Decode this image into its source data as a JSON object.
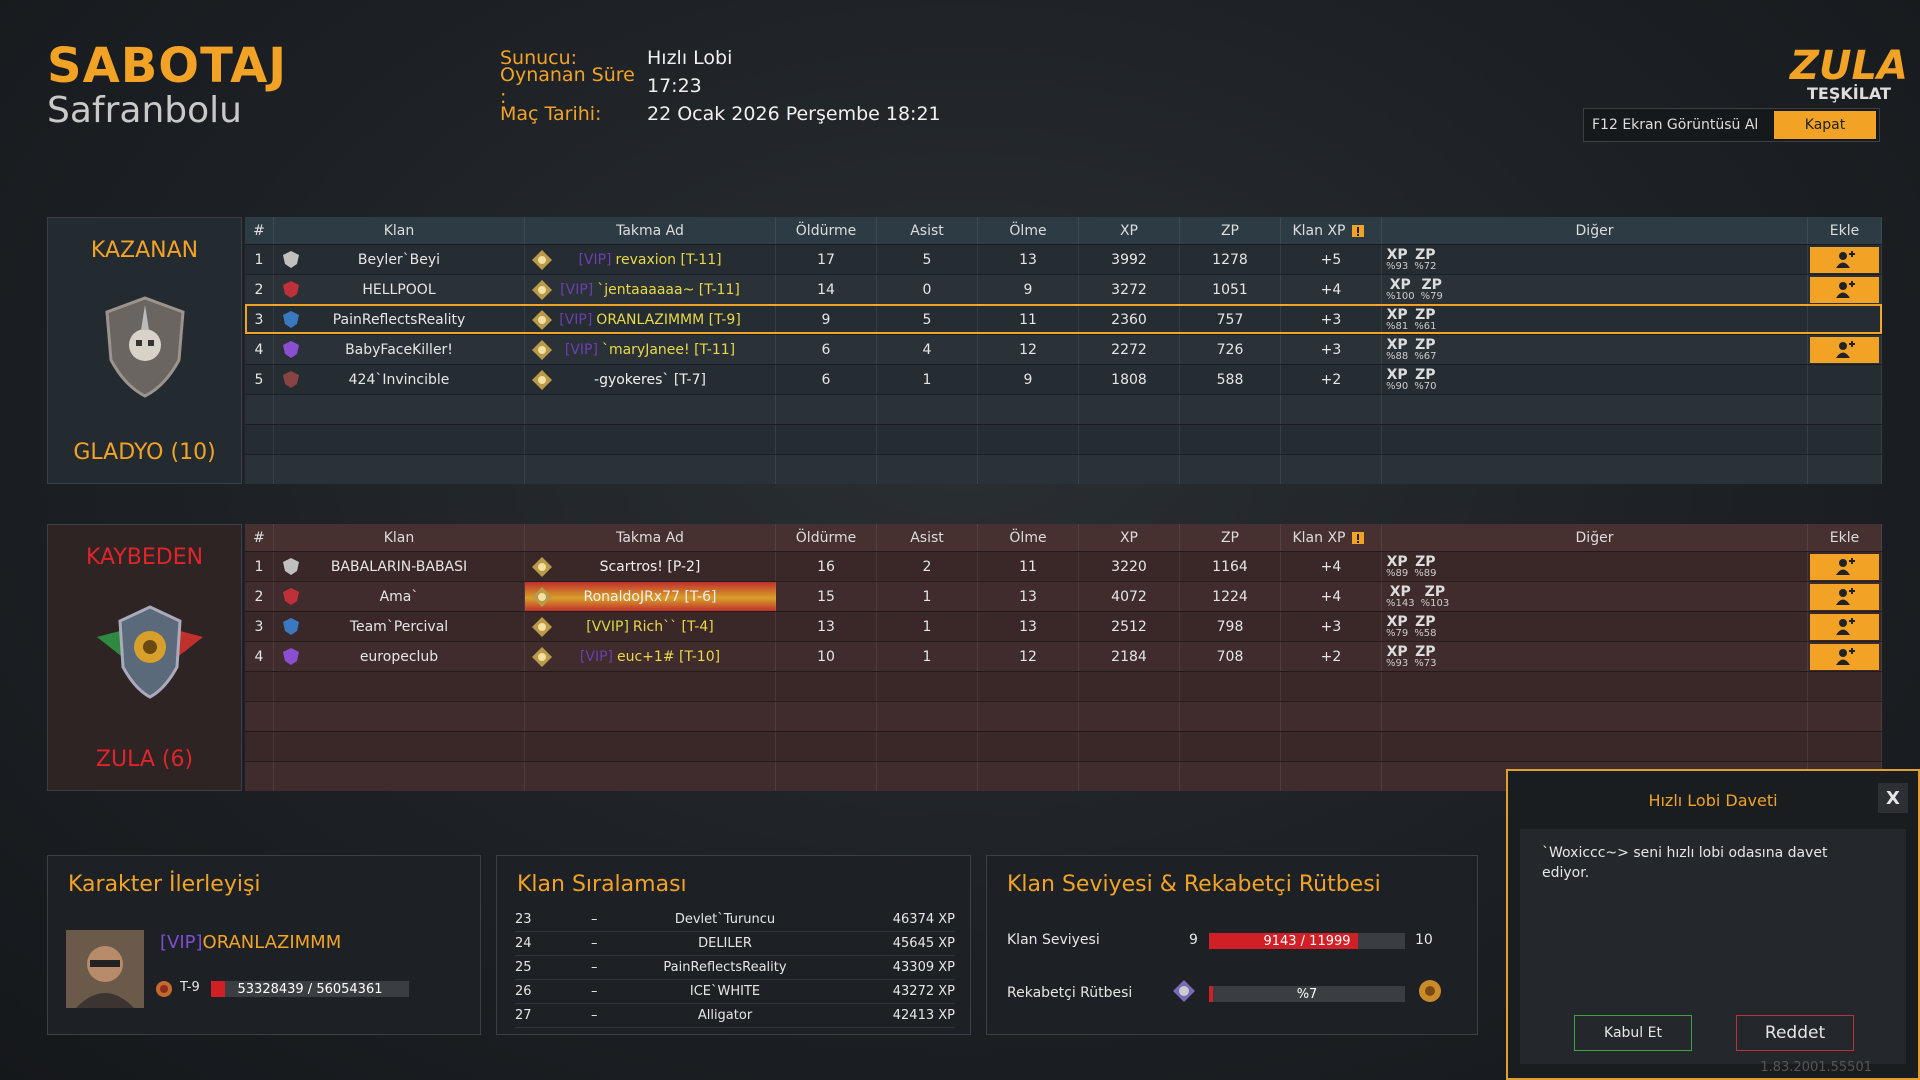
{
  "header": {
    "mode": "SABOTAJ",
    "map": "Safranbolu",
    "info": [
      {
        "label": "Sunucu:",
        "value": "Hızlı Lobi"
      },
      {
        "label": "Oynanan Süre :",
        "value": "17:23"
      },
      {
        "label": "Maç Tarihi:",
        "value": "22 Ocak 2026 Perşembe 18:21"
      }
    ],
    "logo": {
      "line1": "ZULA",
      "line2": "TEŞKİLAT"
    },
    "screenshot_button": "F12 Ekran Görüntüsü Al",
    "close_button": "Kapat"
  },
  "columns": [
    "#",
    "Klan",
    "Takma Ad",
    "Öldürme",
    "Asist",
    "Ölme",
    "XP",
    "ZP",
    "Klan XP",
    "Diğer",
    "Ekle"
  ],
  "teams": [
    {
      "status": "KAZANAN",
      "clan": "GLADYO (10)",
      "players": [
        {
          "rank": 1,
          "clan": "Beyler`Beyi",
          "tag": "[VIP]",
          "nick": "revaxion [T-11]",
          "kills": 17,
          "assists": 5,
          "deaths": 13,
          "xp": 3992,
          "zp": 1278,
          "clan_xp": "+5",
          "bonuses": [
            {
              "type": "XP",
              "value": "%93"
            },
            {
              "type": "ZP",
              "value": "%72"
            }
          ],
          "can_add": true
        },
        {
          "rank": 2,
          "clan": "HELLPOOL",
          "tag": "[VIP]",
          "nick": "`jentaaaaaa~ [T-11]",
          "kills": 14,
          "assists": 0,
          "deaths": 9,
          "xp": 3272,
          "zp": 1051,
          "clan_xp": "+4",
          "bonuses": [
            {
              "type": "XP",
              "value": "%100"
            },
            {
              "type": "ZP",
              "value": "%79"
            }
          ],
          "can_add": true
        },
        {
          "rank": 3,
          "clan": "PainReflectsReality",
          "tag": "[VIP]",
          "nick": "ORANLAZIMMM [T-9]",
          "kills": 9,
          "assists": 5,
          "deaths": 11,
          "xp": 2360,
          "zp": 757,
          "clan_xp": "+3",
          "bonuses": [
            {
              "type": "XP",
              "value": "%81"
            },
            {
              "type": "ZP",
              "value": "%61"
            }
          ],
          "can_add": false,
          "current_player": true
        },
        {
          "rank": 4,
          "clan": "BabyFaceKiller!",
          "tag": "[VIP]",
          "nick": "`maryJanee! [T-11]",
          "kills": 6,
          "assists": 4,
          "deaths": 12,
          "xp": 2272,
          "zp": 726,
          "clan_xp": "+3",
          "bonuses": [
            {
              "type": "XP",
              "value": "%88"
            },
            {
              "type": "ZP",
              "value": "%67"
            }
          ],
          "can_add": true
        },
        {
          "rank": 5,
          "clan": "424`Invincible",
          "nick": "-gyokeres` [T-7]",
          "kills": 6,
          "assists": 1,
          "deaths": 9,
          "xp": 1808,
          "zp": 588,
          "clan_xp": "+2",
          "bonuses": [
            {
              "type": "XP",
              "value": "%90"
            },
            {
              "type": "ZP",
              "value": "%70"
            }
          ],
          "can_add": false
        }
      ]
    },
    {
      "status": "KAYBEDEN",
      "clan": "ZULA (6)",
      "players": [
        {
          "rank": 1,
          "clan": "BABALARIN-BABASI",
          "nick": "Scartros! [P-2]",
          "kills": 16,
          "assists": 2,
          "deaths": 11,
          "xp": 3220,
          "zp": 1164,
          "clan_xp": "+4",
          "bonuses": [
            {
              "type": "XP",
              "value": "%89"
            },
            {
              "type": "ZP",
              "value": "%89"
            }
          ],
          "can_add": true
        },
        {
          "rank": 2,
          "clan": "Ama`",
          "nick": "RonaldoJRx77 [T-6]",
          "kills": 15,
          "assists": 1,
          "deaths": 13,
          "xp": 4072,
          "zp": 1224,
          "clan_xp": "+4",
          "bonuses": [
            {
              "type": "XP",
              "value": "%143"
            },
            {
              "type": "ZP",
              "value": "%103"
            }
          ],
          "can_add": true
        },
        {
          "rank": 3,
          "clan": "Team`Percival",
          "tag": "[VVIP]",
          "nick": "Rich`` [T-4]",
          "kills": 13,
          "assists": 1,
          "deaths": 13,
          "xp": 2512,
          "zp": 798,
          "clan_xp": "+3",
          "bonuses": [
            {
              "type": "XP",
              "value": "%79"
            },
            {
              "type": "ZP",
              "value": "%58"
            }
          ],
          "can_add": true
        },
        {
          "rank": 4,
          "clan": "europeclub",
          "tag": "[VIP]",
          "nick": "euc+1# [T-10]",
          "kills": 10,
          "assists": 1,
          "deaths": 12,
          "xp": 2184,
          "zp": 708,
          "clan_xp": "+2",
          "bonuses": [
            {
              "type": "XP",
              "value": "%93"
            },
            {
              "type": "ZP",
              "value": "%73"
            }
          ],
          "can_add": true
        }
      ]
    }
  ],
  "character": {
    "title": "Karakter İlerleyişi",
    "tag": "[VIP]",
    "name": "ORANLAZIMMM",
    "rank": "T-9",
    "xp": "53328439 / 56054361"
  },
  "clan_ranking": {
    "title": "Klan Sıralaması",
    "rows": [
      {
        "rank": 23,
        "change": "–",
        "name": "Devlet`Turuncu",
        "xp": "46374 XP"
      },
      {
        "rank": 24,
        "change": "–",
        "name": "DELILER",
        "xp": "45645 XP"
      },
      {
        "rank": 25,
        "change": "–",
        "name": "PainReflectsReality",
        "xp": "43309 XP"
      },
      {
        "rank": 26,
        "change": "–",
        "name": "ICE`WHITE",
        "xp": "43272 XP"
      },
      {
        "rank": 27,
        "change": "–",
        "name": "Alligator",
        "xp": "42413 XP"
      }
    ]
  },
  "clan_level": {
    "title": "Klan Seviyesi & Rekabetçi Rütbesi",
    "level_label": "Klan Seviyesi",
    "level": 9,
    "progress": "9143 / 11999",
    "next_level": 10,
    "rank_label": "Rekabetçi Rütbesi",
    "rank_progress": "%7"
  },
  "invite": {
    "title": "Hızlı Lobi Daveti",
    "close": "X",
    "message": "`Woxiccc~> seni hızlı lobi odasına davet ediyor.",
    "accept": "Kabul Et",
    "decline": "Reddet"
  },
  "version": "1.83.2001.55501"
}
